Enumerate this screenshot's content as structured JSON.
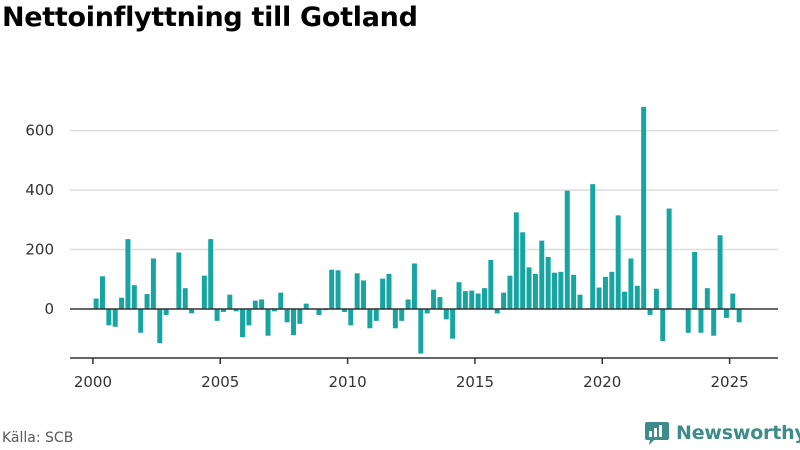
{
  "title": "Nettoinflyttning till Gotland",
  "source": "Källa: SCB",
  "brand": "Newsworthy",
  "colors": {
    "bar": "#16a5a0",
    "grid": "#dddddd",
    "zero": "#333333",
    "brand": "#3d8c89"
  },
  "chart_data": {
    "type": "bar",
    "title": "Nettoinflyttning till Gotland",
    "xlabel": "",
    "ylabel": "",
    "x_start_year": 2000,
    "periods_per_year": 4,
    "xlim": [
      1999.1,
      2026.9
    ],
    "ylim": [
      -165,
      720
    ],
    "yticks": [
      0,
      200,
      400,
      600
    ],
    "xticks": [
      2000,
      2005,
      2010,
      2015,
      2020,
      2025
    ],
    "grid": true,
    "legend": "none",
    "values": [
      35,
      110,
      -55,
      -60,
      38,
      235,
      80,
      -80,
      50,
      170,
      -115,
      -20,
      -2,
      190,
      70,
      -15,
      1,
      112,
      235,
      -40,
      -10,
      48,
      -8,
      -95,
      -55,
      28,
      32,
      -90,
      -8,
      55,
      -45,
      -88,
      -50,
      18,
      0,
      -20,
      -4,
      132,
      130,
      -10,
      -55,
      120,
      96,
      -65,
      -40,
      102,
      118,
      -65,
      -40,
      32,
      153,
      -150,
      -15,
      65,
      40,
      -35,
      -100,
      90,
      60,
      62,
      52,
      70,
      165,
      -15,
      55,
      112,
      325,
      258,
      140,
      118,
      230,
      175,
      122,
      125,
      398,
      115,
      48,
      1,
      420,
      72,
      108,
      125,
      315,
      58,
      170,
      78,
      680,
      -20,
      68,
      -108,
      338,
      0,
      0,
      -80,
      192,
      -80,
      70,
      -90,
      248,
      -30,
      52,
      -45
    ]
  }
}
